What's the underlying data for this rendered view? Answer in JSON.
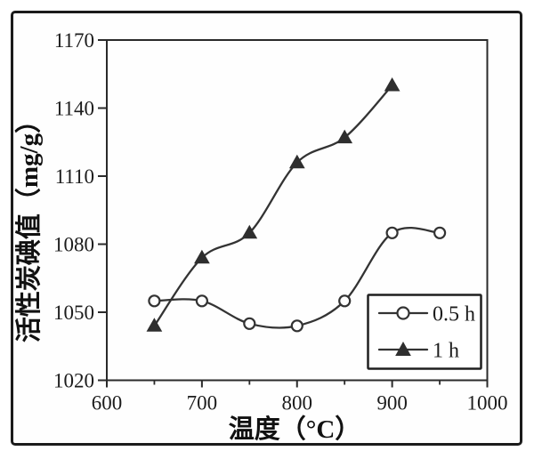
{
  "figure": {
    "background": "#ffffff",
    "border_color": "#1b1b1b",
    "ink_color": "#2a2a2a"
  },
  "chart_data": {
    "type": "line",
    "title": "",
    "xlabel": "温度（°C）",
    "ylabel": "活性炭碘值（mg/g）",
    "xlim": [
      600,
      1000
    ],
    "ylim": [
      1020,
      1170
    ],
    "x_ticks": [
      600,
      700,
      800,
      900,
      1000
    ],
    "x_minor_ticks": [
      650,
      750,
      850,
      950
    ],
    "y_ticks": [
      1020,
      1050,
      1080,
      1110,
      1140,
      1170
    ],
    "grid": false,
    "legend": {
      "position": "lower-right",
      "entries": [
        "0.5 h",
        "1 h"
      ]
    },
    "series": [
      {
        "name": "0.5 h",
        "marker": "circle",
        "marker_fill": "open",
        "color": "#333333",
        "x": [
          650,
          700,
          750,
          800,
          850,
          900,
          950
        ],
        "values": [
          1055,
          1055,
          1045,
          1044,
          1055,
          1085,
          1085
        ]
      },
      {
        "name": "1 h",
        "marker": "triangle",
        "marker_fill": "solid",
        "color": "#333333",
        "x": [
          650,
          700,
          750,
          800,
          850,
          900
        ],
        "values": [
          1044,
          1074,
          1085,
          1116,
          1127,
          1150
        ]
      }
    ]
  }
}
